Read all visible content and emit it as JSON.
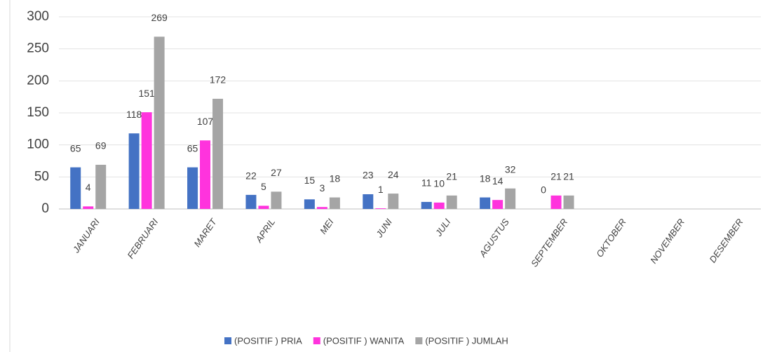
{
  "chart_data": {
    "type": "bar",
    "categories": [
      "JANUARI",
      "FEBRUARI",
      "MARET",
      "APRIL",
      "MEI",
      "JUNI",
      "JULI",
      "AGUSTUS",
      "SEPTEMBER",
      "OKTOBER",
      "NOVEMBER",
      "DESEMBER"
    ],
    "series": [
      {
        "name": "(POSITIF ) PRIA",
        "color": "#4472c4",
        "values": [
          65,
          118,
          65,
          22,
          15,
          23,
          11,
          18,
          0,
          null,
          null,
          null
        ]
      },
      {
        "name": "(POSITIF ) WANITA",
        "color": "#ff33dd",
        "values": [
          4,
          151,
          107,
          5,
          3,
          1,
          10,
          14,
          21,
          null,
          null,
          null
        ]
      },
      {
        "name": "(POSITIF ) JUMLAH",
        "color": "#a5a5a5",
        "values": [
          69,
          269,
          172,
          27,
          18,
          24,
          21,
          32,
          21,
          null,
          null,
          null
        ]
      }
    ],
    "ylim": [
      0,
      300
    ],
    "yticks": [
      0,
      50,
      100,
      150,
      200,
      250,
      300
    ],
    "grid": true,
    "legend": "bottom"
  }
}
